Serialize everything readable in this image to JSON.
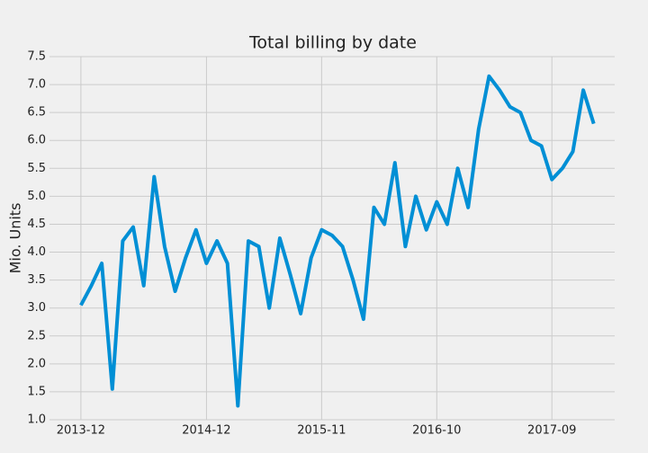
{
  "chart_data": {
    "type": "line",
    "title": "Total billing by date",
    "y_label": "Mio. Units",
    "x": [
      "2013-12",
      "2014-01",
      "2014-02",
      "2014-03",
      "2014-04",
      "2014-05",
      "2014-06",
      "2014-07",
      "2014-08",
      "2014-09",
      "2014-10",
      "2014-11",
      "2014-12",
      "2015-01",
      "2015-02",
      "2015-03",
      "2015-04",
      "2015-05",
      "2015-06",
      "2015-07",
      "2015-08",
      "2015-09",
      "2015-10",
      "2015-11",
      "2015-12",
      "2016-01",
      "2016-02",
      "2016-03",
      "2016-04",
      "2016-05",
      "2016-06",
      "2016-07",
      "2016-08",
      "2016-09",
      "2016-10",
      "2016-11",
      "2016-12",
      "2017-01",
      "2017-02",
      "2017-03",
      "2017-04",
      "2017-05",
      "2017-06",
      "2017-07",
      "2017-08",
      "2017-09",
      "2017-10",
      "2017-11",
      "2017-12",
      "2018-01"
    ],
    "series": [
      {
        "name": "Total billing",
        "color": "#008fd5",
        "values": [
          3.05,
          3.4,
          3.8,
          1.55,
          4.2,
          4.45,
          3.4,
          5.35,
          4.1,
          3.3,
          3.9,
          4.4,
          3.8,
          4.2,
          3.8,
          1.25,
          4.2,
          4.1,
          3.0,
          4.25,
          3.6,
          2.9,
          3.9,
          4.4,
          4.3,
          4.1,
          3.5,
          2.8,
          4.8,
          4.5,
          5.6,
          4.1,
          5.0,
          4.4,
          4.9,
          4.5,
          5.5,
          4.8,
          6.2,
          7.15,
          6.9,
          6.6,
          6.5,
          6.0,
          5.9,
          5.3,
          5.5,
          5.8,
          6.9,
          6.3
        ]
      }
    ],
    "xlim": [
      "2013-09",
      "2018-03"
    ],
    "xticks": [
      "2013-12",
      "2014-12",
      "2015-11",
      "2016-10",
      "2017-09"
    ],
    "ylim": [
      1.0,
      7.5
    ],
    "yticks": [
      {
        "value": 1,
        "label": "1.0"
      },
      1.5,
      {
        "value": 2,
        "label": "2.0"
      },
      2.5,
      {
        "value": 3,
        "label": "3.0"
      },
      3.5,
      {
        "value": 4,
        "label": "4.0"
      },
      4.5,
      {
        "value": 5,
        "label": "5.0"
      },
      5.5,
      {
        "value": 6,
        "label": "6.0"
      },
      6.5,
      {
        "value": 7,
        "label": "7.0"
      },
      7.5
    ],
    "grid": true
  }
}
